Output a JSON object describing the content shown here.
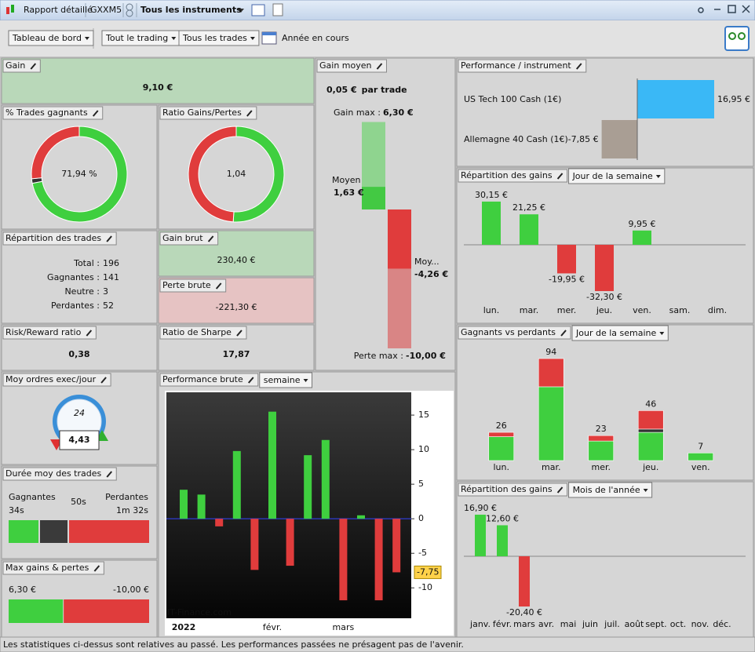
{
  "toolbar": {
    "report": "Rapport détaillé",
    "account": "GXXM5",
    "instrument": "Tous les instruments"
  },
  "filters": {
    "view": "Tableau de bord",
    "trading": "Tout le trading",
    "trades": "Tous les trades",
    "period": "Année en cours"
  },
  "gain": {
    "title": "Gain",
    "value": "9,10 €"
  },
  "win_rate": {
    "title": "% Trades gagnants",
    "label": "71,94 %"
  },
  "gain_loss_ratio": {
    "title": "Ratio Gains/Pertes",
    "label": "1,04"
  },
  "trade_split": {
    "title": "Répartition des trades",
    "rows": [
      {
        "label": "Total :",
        "value": 196
      },
      {
        "label": "Gagnantes :",
        "value": 141
      },
      {
        "label": "Neutre :",
        "value": 3
      },
      {
        "label": "Perdantes :",
        "value": 52
      }
    ]
  },
  "gross_gain": {
    "title": "Gain brut",
    "value": 230.4,
    "label": "230,40 €"
  },
  "gross_loss": {
    "title": "Perte brute",
    "value": -221.3,
    "label": "-221,30 €"
  },
  "risk_reward": {
    "title": "Risk/Reward ratio",
    "value": "0,38"
  },
  "sharpe": {
    "title": "Ratio de Sharpe",
    "value": "17,87"
  },
  "avg_gain": {
    "title": "Gain moyen",
    "headline": "0,05 €",
    "suffix": "par trade",
    "max_gain": {
      "label": "Gain max :",
      "value": 6.3,
      "value_label": "6,30 €"
    },
    "avg_win": {
      "label": "Moyen",
      "value": 1.63,
      "value_label": "1,63 €"
    },
    "avg_loss": {
      "label": "Moy...",
      "value": -4.26,
      "value_label": "-4,26 €"
    },
    "max_loss": {
      "label": "Perte max :",
      "value": -10,
      "value_label": "-10,00 €"
    }
  },
  "orders": {
    "title": "Moy ordres exec/jour",
    "value": "4,43",
    "clock": "24"
  },
  "duration": {
    "title": "Durée moy des trades",
    "winners": "Gagnantes",
    "winners_time": "34s",
    "average": "50s",
    "losers": "Perdantes",
    "losers_time": "1m 32s"
  },
  "max_gl": {
    "title": "Max gains & pertes",
    "max_gain": {
      "value": 6.3,
      "label": "6,30 €"
    },
    "max_loss": {
      "value": -10,
      "label": "-10,00 €"
    }
  },
  "chart_data": [
    {
      "type": "barh",
      "title": "Performance / instrument",
      "categories": [
        "US Tech 100 Cash (1€)",
        "Allemagne 40 Cash (1€)"
      ],
      "values": [
        16.95,
        -7.85
      ],
      "value_labels": [
        "16,95 €",
        "-7,85 €"
      ],
      "colors": [
        "#3ab8f6",
        "#a99e94"
      ]
    },
    {
      "type": "bar",
      "title": "Répartition des gains",
      "dropdown": "Jour de la semaine",
      "categories": [
        "lun.",
        "mar.",
        "mer.",
        "jeu.",
        "ven.",
        "sam.",
        "dim."
      ],
      "values": [
        30.15,
        21.25,
        -19.95,
        -32.3,
        9.95,
        null,
        null
      ],
      "value_labels": [
        "30,15 €",
        "21,25 €",
        "-19,95 €",
        "-32,30 €",
        "9,95 €",
        null,
        null
      ],
      "positive_color": "#3fcf3f",
      "negative_color": "#e03c3c"
    },
    {
      "type": "stacked",
      "title": "Gagnants vs perdants",
      "dropdown": "Jour de la semaine",
      "categories": [
        "lun.",
        "mar.",
        "mer.",
        "jeu.",
        "ven."
      ],
      "totals": [
        26,
        94,
        23,
        46,
        7
      ],
      "series": [
        {
          "color": "#3fcf3f",
          "values": [
            22,
            68,
            18,
            26,
            7
          ]
        },
        {
          "color": "#333333",
          "values": [
            0,
            0,
            0,
            3,
            0
          ]
        },
        {
          "color": "#e03c3c",
          "values": [
            4,
            26,
            5,
            17,
            0
          ]
        }
      ]
    },
    {
      "type": "bar",
      "title": "Répartition des gains",
      "dropdown": "Mois de l'année",
      "categories": [
        "janv.",
        "févr.",
        "mars",
        "avr.",
        "mai",
        "juin",
        "juil.",
        "août",
        "sept.",
        "oct.",
        "nov.",
        "déc."
      ],
      "values": [
        16.9,
        12.6,
        -20.4,
        null,
        null,
        null,
        null,
        null,
        null,
        null,
        null,
        null
      ],
      "value_labels": [
        "16,90 €",
        "12,60 €",
        "-20,40 €",
        null,
        null,
        null,
        null,
        null,
        null,
        null,
        null,
        null
      ],
      "positive_color": "#3fcf3f",
      "negative_color": "#e03c3c"
    },
    {
      "type": "dark_bar",
      "title": "Performance brute",
      "dropdown": "semaine",
      "watermark": "IT-Finance.com",
      "categories": [
        "2022",
        null,
        null,
        null,
        null,
        "févr.",
        null,
        null,
        null,
        "mars",
        null,
        null,
        null
      ],
      "values": [
        4.2,
        3.5,
        -1.1,
        9.8,
        -7.4,
        15.5,
        -6.8,
        9.2,
        11.4,
        -11.8,
        0.5,
        -11.8,
        -7.75
      ],
      "value_labels": [
        null,
        null,
        null,
        null,
        null,
        null,
        null,
        null,
        null,
        null,
        null,
        null,
        "-7,75"
      ],
      "ylim": [
        -14.4,
        18.3
      ],
      "yticks": [
        15,
        10,
        5,
        0,
        -5,
        -10
      ],
      "positive_color": "#3fcf3f",
      "negative_color": "#e03c3c"
    }
  ],
  "footer": "Les statistiques ci-dessus sont relatives au passé. Les performances passées ne présagent pas de l'avenir."
}
